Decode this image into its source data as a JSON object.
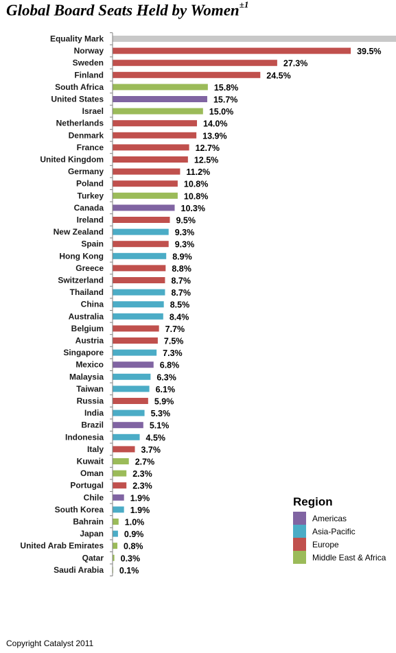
{
  "title": "Global Board Seats Held by Women",
  "title_superscript": "±1",
  "copyright": "Copyright Catalyst 2011",
  "legend": {
    "title": "Region",
    "items": [
      {
        "label": "Americas",
        "color": "#8064A2"
      },
      {
        "label": "Asia-Pacific",
        "color": "#4BACC6"
      },
      {
        "label": "Europe",
        "color": "#C0504D"
      },
      {
        "label": "Middle East & Africa",
        "color": "#9BBB59"
      }
    ]
  },
  "chart_data": {
    "type": "bar",
    "orientation": "horizontal",
    "title": "Global Board Seats Held by Women",
    "xlim": [
      0,
      47
    ],
    "grid": false,
    "legend_position": "bottom-right",
    "reference": {
      "label": "Equality Mark",
      "color": "#C8C8C8"
    },
    "region_colors": {
      "Americas": "#8064A2",
      "Asia-Pacific": "#4BACC6",
      "Europe": "#C0504D",
      "Middle East & Africa": "#9BBB59"
    },
    "categories": [
      "Norway",
      "Sweden",
      "Finland",
      "South Africa",
      "United States",
      "Israel",
      "Netherlands",
      "Denmark",
      "France",
      "United Kingdom",
      "Germany",
      "Poland",
      "Turkey",
      "Canada",
      "Ireland",
      "New Zealand",
      "Spain",
      "Hong Kong",
      "Greece",
      "Switzerland",
      "Thailand",
      "China",
      "Australia",
      "Belgium",
      "Austria",
      "Singapore",
      "Mexico",
      "Malaysia",
      "Taiwan",
      "Russia",
      "India",
      "Brazil",
      "Indonesia",
      "Italy",
      "Kuwait",
      "Oman",
      "Portugal",
      "Chile",
      "South Korea",
      "Bahrain",
      "Japan",
      "United Arab Emirates",
      "Qatar",
      "Saudi Arabia"
    ],
    "values": [
      39.5,
      27.3,
      24.5,
      15.8,
      15.7,
      15.0,
      14.0,
      13.9,
      12.7,
      12.5,
      11.2,
      10.8,
      10.8,
      10.3,
      9.5,
      9.3,
      9.3,
      8.9,
      8.8,
      8.7,
      8.7,
      8.5,
      8.4,
      7.7,
      7.5,
      7.3,
      6.8,
      6.3,
      6.1,
      5.9,
      5.3,
      5.1,
      4.5,
      3.7,
      2.7,
      2.3,
      2.3,
      1.9,
      1.9,
      1.0,
      0.9,
      0.8,
      0.3,
      0.1
    ],
    "labels": [
      "39.5%",
      "27.3%",
      "24.5%",
      "15.8%",
      "15.7%",
      "15.0%",
      "14.0%",
      "13.9%",
      "12.7%",
      "12.5%",
      "11.2%",
      "10.8%",
      "10.8%",
      "10.3%",
      "9.5%",
      "9.3%",
      "9.3%",
      "8.9%",
      "8.8%",
      "8.7%",
      "8.7%",
      "8.5%",
      "8.4%",
      "7.7%",
      "7.5%",
      "7.3%",
      "6.8%",
      "6.3%",
      "6.1%",
      "5.9%",
      "5.3%",
      "5.1%",
      "4.5%",
      "3.7%",
      "2.7%",
      "2.3%",
      "2.3%",
      "1.9%",
      "1.9%",
      "1.0%",
      "0.9%",
      "0.8%",
      "0.3%",
      "0.1%"
    ],
    "regions": [
      "Europe",
      "Europe",
      "Europe",
      "Middle East & Africa",
      "Americas",
      "Middle East & Africa",
      "Europe",
      "Europe",
      "Europe",
      "Europe",
      "Europe",
      "Europe",
      "Middle East & Africa",
      "Americas",
      "Europe",
      "Asia-Pacific",
      "Europe",
      "Asia-Pacific",
      "Europe",
      "Europe",
      "Asia-Pacific",
      "Asia-Pacific",
      "Asia-Pacific",
      "Europe",
      "Europe",
      "Asia-Pacific",
      "Americas",
      "Asia-Pacific",
      "Asia-Pacific",
      "Europe",
      "Asia-Pacific",
      "Americas",
      "Asia-Pacific",
      "Europe",
      "Middle East & Africa",
      "Middle East & Africa",
      "Europe",
      "Americas",
      "Asia-Pacific",
      "Middle East & Africa",
      "Asia-Pacific",
      "Middle East & Africa",
      "Middle East & Africa",
      "Middle East & Africa"
    ]
  }
}
